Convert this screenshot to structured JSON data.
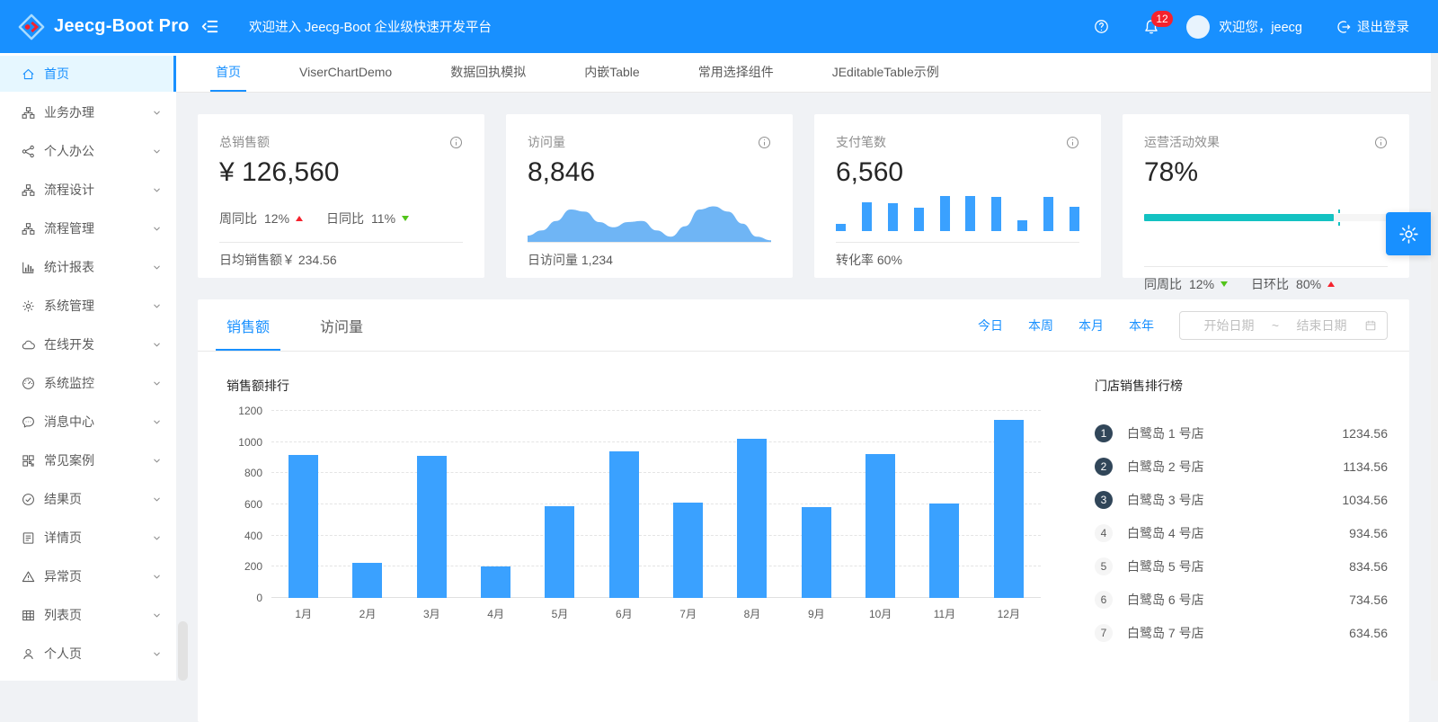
{
  "header": {
    "brand": "Jeecg-Boot Pro",
    "welcome_message": "欢迎进入 Jeecg-Boot 企业级快速开发平台",
    "notification_count": "12",
    "user_greeting": "欢迎您，jeecg",
    "logout_label": "退出登录"
  },
  "colors": {
    "primary": "#1890ff",
    "sidebar_active_bg": "#e6f7ff",
    "bar_blue": "#3aa1ff",
    "area_blue": "#6fb5f5",
    "progress_teal": "#13c2c2",
    "trend_up_red": "#f5222d",
    "trend_down_green": "#52c41a",
    "rank_badge_dark": "#314659",
    "badge_red": "#f5222d"
  },
  "sidebar": {
    "items": [
      {
        "label": "首页",
        "icon": "home-icon",
        "active": true,
        "has_children": false
      },
      {
        "label": "业务办理",
        "icon": "cluster-icon",
        "active": false,
        "has_children": true
      },
      {
        "label": "个人办公",
        "icon": "share-icon",
        "active": false,
        "has_children": true
      },
      {
        "label": "流程设计",
        "icon": "cluster-icon",
        "active": false,
        "has_children": true
      },
      {
        "label": "流程管理",
        "icon": "cluster-icon",
        "active": false,
        "has_children": true
      },
      {
        "label": "统计报表",
        "icon": "bar-chart-icon",
        "active": false,
        "has_children": true
      },
      {
        "label": "系统管理",
        "icon": "gear-icon",
        "active": false,
        "has_children": true
      },
      {
        "label": "在线开发",
        "icon": "cloud-icon",
        "active": false,
        "has_children": true
      },
      {
        "label": "系统监控",
        "icon": "dashboard-icon",
        "active": false,
        "has_children": true
      },
      {
        "label": "消息中心",
        "icon": "message-icon",
        "active": false,
        "has_children": true
      },
      {
        "label": "常见案例",
        "icon": "grid-case-icon",
        "active": false,
        "has_children": true
      },
      {
        "label": "结果页",
        "icon": "check-circle-icon",
        "active": false,
        "has_children": true
      },
      {
        "label": "详情页",
        "icon": "profile-icon",
        "active": false,
        "has_children": true
      },
      {
        "label": "异常页",
        "icon": "warning-icon",
        "active": false,
        "has_children": true
      },
      {
        "label": "列表页",
        "icon": "table-icon",
        "active": false,
        "has_children": true
      },
      {
        "label": "个人页",
        "icon": "user-icon",
        "active": false,
        "has_children": true
      }
    ]
  },
  "page_tabs": [
    {
      "label": "首页",
      "active": true
    },
    {
      "label": "ViserChartDemo",
      "active": false
    },
    {
      "label": "数据回执模拟",
      "active": false
    },
    {
      "label": "内嵌Table",
      "active": false
    },
    {
      "label": "常用选择组件",
      "active": false
    },
    {
      "label": "JEditableTable示例",
      "active": false
    }
  ],
  "stat_cards": [
    {
      "title": "总销售额",
      "value": "¥ 126,560",
      "trends": [
        {
          "label": "周同比",
          "value": "12%",
          "direction": "up"
        },
        {
          "label": "日同比",
          "value": "11%",
          "direction": "down"
        }
      ],
      "footer": "日均销售额￥ 234.56"
    },
    {
      "title": "访问量",
      "value": "8,846",
      "area_points": [
        12,
        22,
        40,
        62,
        58,
        38,
        28,
        38,
        40,
        22,
        10,
        30,
        62,
        68,
        58,
        35,
        10,
        3
      ],
      "footer": "日访问量 1,234"
    },
    {
      "title": "支付笔数",
      "value": "6,560",
      "bar_points": [
        18,
        70,
        68,
        56,
        84,
        84,
        82,
        26,
        82,
        58
      ],
      "footer": "转化率 60%"
    },
    {
      "title": "运营活动效果",
      "value": "78%",
      "progress_percent": 78,
      "progress_target": 80,
      "trends": [
        {
          "label": "同周比",
          "value": "12%",
          "direction": "down"
        },
        {
          "label": "日环比",
          "value": "80%",
          "direction": "up"
        }
      ]
    }
  ],
  "sales_panel": {
    "tabs": [
      {
        "label": "销售额",
        "active": true
      },
      {
        "label": "访问量",
        "active": false
      }
    ],
    "quick_ranges": [
      "今日",
      "本周",
      "本月",
      "本年"
    ],
    "date_range": {
      "start_placeholder": "开始日期",
      "separator": "~",
      "end_placeholder": "结束日期"
    }
  },
  "chart_data": {
    "type": "bar",
    "title": "销售额排行",
    "categories": [
      "1月",
      "2月",
      "3月",
      "4月",
      "5月",
      "6月",
      "7月",
      "8月",
      "9月",
      "10月",
      "11月",
      "12月"
    ],
    "values": [
      920,
      225,
      910,
      200,
      590,
      940,
      610,
      1020,
      585,
      925,
      605,
      1140
    ],
    "xlabel": "",
    "ylabel": "",
    "ylim": [
      0,
      1200
    ],
    "yticks": [
      0,
      200,
      400,
      600,
      800,
      1000,
      1200
    ],
    "grid": "dashed-horizontal",
    "legend": "none",
    "bar_color": "#3aa1ff"
  },
  "ranking": {
    "title": "门店销售排行榜",
    "items": [
      {
        "rank": "1",
        "name": "白鹭岛 1 号店",
        "value": "1234.56"
      },
      {
        "rank": "2",
        "name": "白鹭岛 2 号店",
        "value": "1134.56"
      },
      {
        "rank": "3",
        "name": "白鹭岛 3 号店",
        "value": "1034.56"
      },
      {
        "rank": "4",
        "name": "白鹭岛 4 号店",
        "value": "934.56"
      },
      {
        "rank": "5",
        "name": "白鹭岛 5 号店",
        "value": "834.56"
      },
      {
        "rank": "6",
        "name": "白鹭岛 6 号店",
        "value": "734.56"
      },
      {
        "rank": "7",
        "name": "白鹭岛 7 号店",
        "value": "634.56"
      }
    ]
  }
}
